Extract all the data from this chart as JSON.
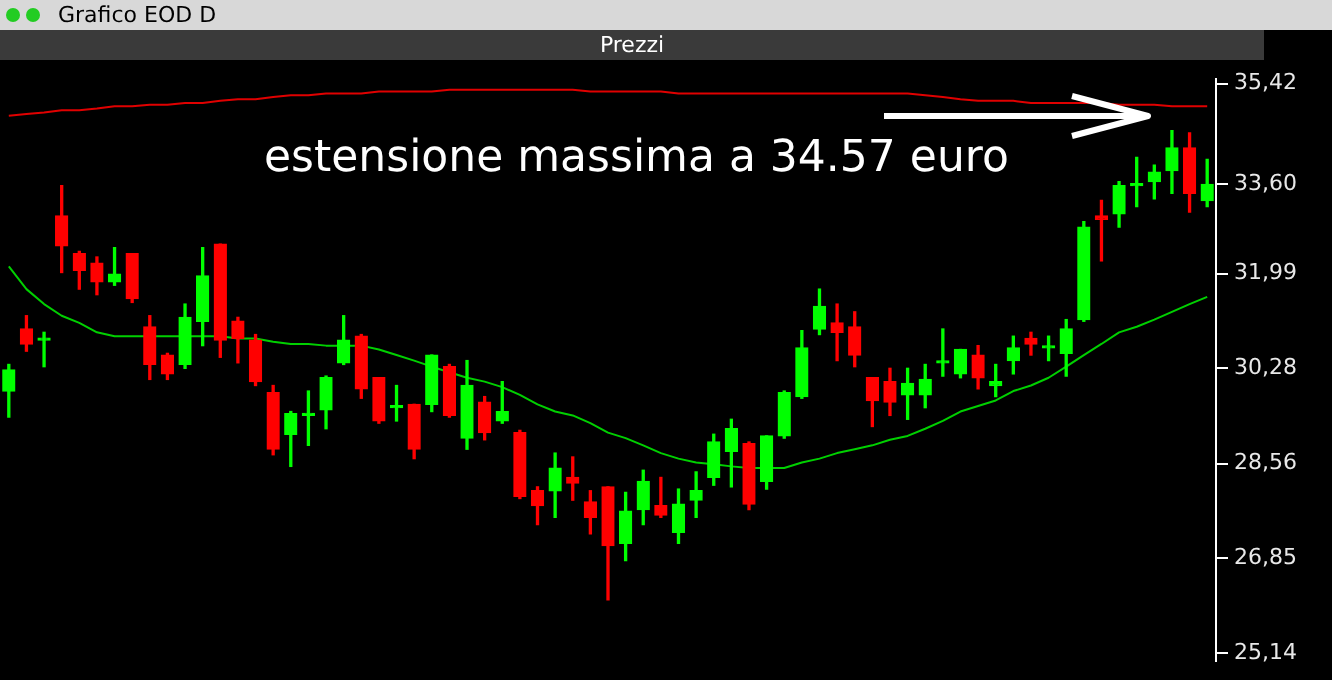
{
  "chart_data": {
    "type": "candlestick",
    "title": "Grafico EOD D",
    "subtitle": "Prezzi",
    "annotations": [
      "estensione massima a 34.57 euro"
    ],
    "categories": [
      null,
      null,
      null,
      null,
      null,
      null,
      null,
      null,
      null,
      null,
      null,
      null,
      null,
      null,
      null,
      null,
      null,
      null,
      null,
      null,
      null,
      null,
      null,
      null,
      null,
      null,
      null,
      null,
      null,
      null,
      null,
      null,
      null,
      null,
      null,
      null,
      null,
      null,
      null,
      null,
      null,
      null,
      null,
      null,
      null,
      null,
      null,
      null,
      null,
      null,
      null,
      null,
      null,
      null,
      null,
      null,
      null,
      null,
      null,
      null,
      null,
      null,
      null,
      null,
      null,
      null,
      null,
      null,
      null
    ],
    "ohlc": [
      [
        29.87,
        30.35,
        29.4,
        30.25
      ],
      [
        30.99,
        31.23,
        30.59,
        30.72
      ],
      [
        30.79,
        30.93,
        30.31,
        30.79
      ],
      [
        33.03,
        33.58,
        32.01,
        32.49
      ],
      [
        32.35,
        32.39,
        31.71,
        32.05
      ],
      [
        32.18,
        32.29,
        31.61,
        31.84
      ],
      [
        31.84,
        32.46,
        31.78,
        31.98
      ],
      [
        32.35,
        32.35,
        31.47,
        31.54
      ],
      [
        31.03,
        31.23,
        30.08,
        30.35
      ],
      [
        30.52,
        30.55,
        30.08,
        30.18
      ],
      [
        30.35,
        31.44,
        30.28,
        31.2
      ],
      [
        31.13,
        32.46,
        30.69,
        31.95
      ],
      [
        32.52,
        32.52,
        30.48,
        30.79
      ],
      [
        31.13,
        31.2,
        30.38,
        30.82
      ],
      [
        30.79,
        30.89,
        29.97,
        30.04
      ],
      [
        29.84,
        29.97,
        28.72,
        28.82
      ],
      [
        29.09,
        29.5,
        28.51,
        29.46
      ],
      [
        29.43,
        29.87,
        28.89,
        29.43
      ],
      [
        29.53,
        30.14,
        29.19,
        30.11
      ],
      [
        30.38,
        31.23,
        30.35,
        30.79
      ],
      [
        30.86,
        30.89,
        29.74,
        29.91
      ],
      [
        30.11,
        30.11,
        29.29,
        29.33
      ],
      [
        29.57,
        29.97,
        29.33,
        29.57
      ],
      [
        29.63,
        29.63,
        28.65,
        28.82
      ],
      [
        29.63,
        30.52,
        29.5,
        30.52
      ],
      [
        30.31,
        30.35,
        29.4,
        29.43
      ],
      [
        29.02,
        30.42,
        28.82,
        29.97
      ],
      [
        29.67,
        29.77,
        28.99,
        29.12
      ],
      [
        29.33,
        30.04,
        29.29,
        29.5
      ],
      [
        29.12,
        29.16,
        27.93,
        27.97
      ],
      [
        28.07,
        28.14,
        27.46,
        27.8
      ],
      [
        28.07,
        28.75,
        27.59,
        28.48
      ],
      [
        28.31,
        28.68,
        27.9,
        28.21
      ],
      [
        27.87,
        28.07,
        27.29,
        27.59
      ],
      [
        28.14,
        28.14,
        26.1,
        27.08
      ],
      [
        27.12,
        28.04,
        26.81,
        27.7
      ],
      [
        27.73,
        28.44,
        27.46,
        28.24
      ],
      [
        27.8,
        28.31,
        27.59,
        27.63
      ],
      [
        27.32,
        28.1,
        27.12,
        27.83
      ],
      [
        27.9,
        28.41,
        27.59,
        28.07
      ],
      [
        28.31,
        29.09,
        28.17,
        28.95
      ],
      [
        28.78,
        29.36,
        28.14,
        29.19
      ],
      [
        28.92,
        28.95,
        27.73,
        27.83
      ],
      [
        28.24,
        29.06,
        28.1,
        29.06
      ],
      [
        29.06,
        29.87,
        29.02,
        29.84
      ],
      [
        29.77,
        30.96,
        29.74,
        30.65
      ],
      [
        30.99,
        31.71,
        30.89,
        31.4
      ],
      [
        31.1,
        31.44,
        30.42,
        30.93
      ],
      [
        31.03,
        31.3,
        30.31,
        30.52
      ],
      [
        30.11,
        30.11,
        29.23,
        29.7
      ],
      [
        30.04,
        30.28,
        29.43,
        29.67
      ],
      [
        29.8,
        30.28,
        29.36,
        30.01
      ],
      [
        29.8,
        30.35,
        29.57,
        30.08
      ],
      [
        30.38,
        30.99,
        30.14,
        30.38
      ],
      [
        30.18,
        30.62,
        30.11,
        30.62
      ],
      [
        30.52,
        30.69,
        29.91,
        30.11
      ],
      [
        29.97,
        30.35,
        29.77,
        30.04
      ],
      [
        30.42,
        30.86,
        30.18,
        30.65
      ],
      [
        30.82,
        30.93,
        30.52,
        30.72
      ],
      [
        30.65,
        30.86,
        30.42,
        30.65
      ],
      [
        30.55,
        31.16,
        30.14,
        30.99
      ],
      [
        31.16,
        32.93,
        31.13,
        32.83
      ],
      [
        33.03,
        33.31,
        32.22,
        32.97
      ],
      [
        33.07,
        33.65,
        32.83,
        33.58
      ],
      [
        33.58,
        34.09,
        33.2,
        33.58
      ],
      [
        33.65,
        33.95,
        33.34,
        33.82
      ],
      [
        33.85,
        34.57,
        33.44,
        34.26
      ],
      [
        34.26,
        34.53,
        33.1,
        33.44
      ],
      [
        33.31,
        34.05,
        33.2,
        33.6
      ]
    ],
    "colors": [
      "#00ff00",
      "#ff0000",
      "#00ff00",
      "#ff0000",
      "#ff0000",
      "#ff0000",
      "#00ff00",
      "#ff0000",
      "#ff0000",
      "#ff0000",
      "#00ff00",
      "#00ff00",
      "#ff0000",
      "#ff0000",
      "#ff0000",
      "#ff0000",
      "#00ff00",
      "#00ff00",
      "#00ff00",
      "#00ff00",
      "#ff0000",
      "#ff0000",
      "#00ff00",
      "#ff0000",
      "#00ff00",
      "#ff0000",
      "#00ff00",
      "#ff0000",
      "#00ff00",
      "#ff0000",
      "#ff0000",
      "#00ff00",
      "#ff0000",
      "#ff0000",
      "#ff0000",
      "#00ff00",
      "#00ff00",
      "#ff0000",
      "#00ff00",
      "#00ff00",
      "#00ff00",
      "#00ff00",
      "#ff0000",
      "#00ff00",
      "#00ff00",
      "#00ff00",
      "#00ff00",
      "#ff0000",
      "#ff0000",
      "#ff0000",
      "#ff0000",
      "#00ff00",
      "#00ff00",
      "#00ff00",
      "#00ff00",
      "#ff0000",
      "#00ff00",
      "#00ff00",
      "#ff0000",
      "#00ff00",
      "#00ff00",
      "#00ff00",
      "#ff0000",
      "#00ff00",
      "#00ff00",
      "#00ff00",
      "#00ff00",
      "#ff0000",
      "#00ff00"
    ],
    "series": [
      {
        "type": "line",
        "color": "#00d000",
        "values": [
          32.12,
          31.71,
          31.44,
          31.23,
          31.1,
          30.93,
          30.86,
          30.86,
          30.86,
          30.86,
          30.86,
          30.86,
          30.86,
          30.82,
          30.82,
          30.76,
          30.72,
          30.72,
          30.69,
          30.69,
          30.69,
          30.62,
          30.52,
          30.42,
          30.31,
          30.21,
          30.11,
          30.04,
          29.94,
          29.8,
          29.63,
          29.5,
          29.43,
          29.29,
          29.12,
          29.02,
          28.89,
          28.75,
          28.65,
          28.58,
          28.55,
          28.51,
          28.48,
          28.48,
          28.48,
          28.58,
          28.65,
          28.75,
          28.82,
          28.89,
          28.99,
          29.06,
          29.19,
          29.33,
          29.5,
          29.6,
          29.7,
          29.87,
          29.97,
          30.11,
          30.31,
          30.52,
          30.72,
          30.93,
          31.03,
          31.16,
          31.3,
          31.44,
          31.57
        ]
      },
      {
        "type": "line",
        "color": "#e00000",
        "values": [
          34.84,
          34.87,
          34.9,
          34.94,
          34.94,
          34.97,
          35.01,
          35.01,
          35.04,
          35.04,
          35.07,
          35.07,
          35.11,
          35.14,
          35.14,
          35.18,
          35.21,
          35.21,
          35.24,
          35.24,
          35.24,
          35.28,
          35.28,
          35.28,
          35.28,
          35.31,
          35.31,
          35.31,
          35.31,
          35.31,
          35.31,
          35.31,
          35.31,
          35.28,
          35.28,
          35.28,
          35.28,
          35.28,
          35.24,
          35.24,
          35.24,
          35.24,
          35.24,
          35.24,
          35.24,
          35.24,
          35.24,
          35.24,
          35.24,
          35.24,
          35.24,
          35.24,
          35.21,
          35.18,
          35.14,
          35.11,
          35.11,
          35.11,
          35.07,
          35.07,
          35.07,
          35.07,
          35.07,
          35.04,
          35.04,
          35.04,
          35.01,
          35.01,
          35.01
        ]
      }
    ],
    "ylim": [
      25.0,
      35.5
    ],
    "yticks": [
      {
        "value": 25.14,
        "label": "25,14"
      },
      {
        "value": 26.85,
        "label": "26,85"
      },
      {
        "value": 28.56,
        "label": "28,56"
      },
      {
        "value": 30.28,
        "label": "30,28"
      },
      {
        "value": 31.99,
        "label": "31,99"
      },
      {
        "value": 33.6,
        "label": "33,60"
      },
      {
        "value": 35.42,
        "label": "35,42"
      }
    ],
    "grid": false,
    "legend": false
  }
}
